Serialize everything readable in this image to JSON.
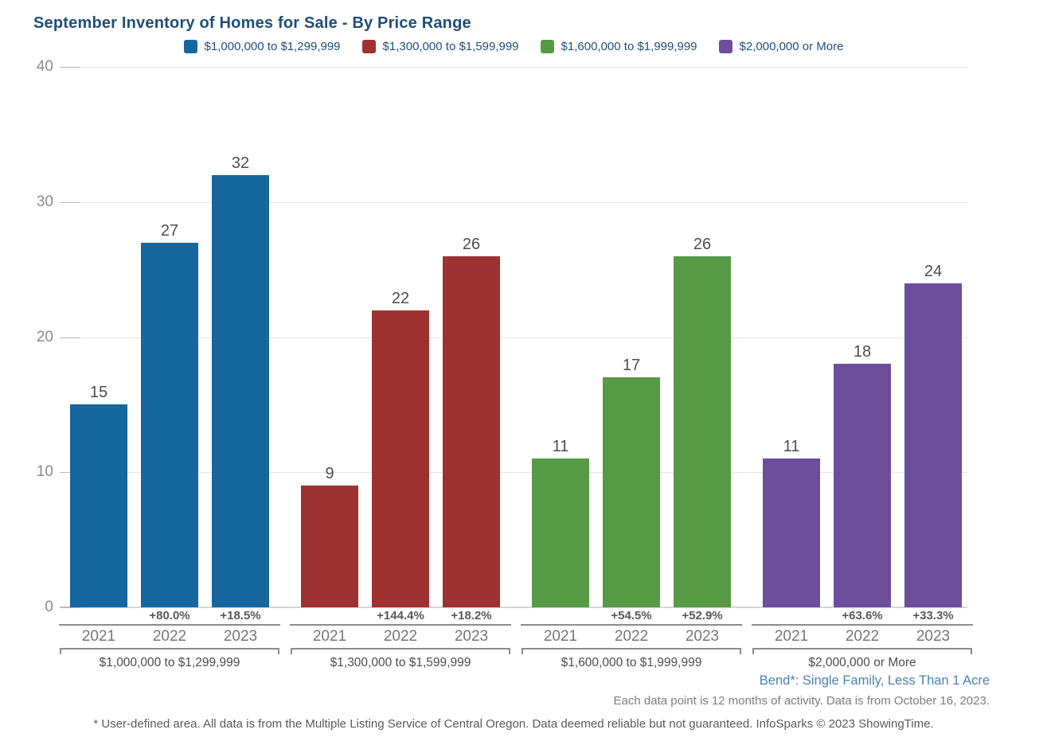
{
  "title": "September Inventory of Homes for Sale - By Price Range",
  "chart_data": {
    "type": "bar",
    "title": "September Inventory of Homes for Sale - By Price Range",
    "categories": [
      "2021",
      "2022",
      "2023"
    ],
    "groups": [
      {
        "label": "$1,000,000 to $1,299,999",
        "color": "#15679E",
        "values": [
          15,
          27,
          32
        ],
        "pct_change": [
          "",
          "+80.0%",
          "+18.5%"
        ]
      },
      {
        "label": "$1,300,000 to $1,599,999",
        "color": "#9E3132",
        "values": [
          9,
          22,
          26
        ],
        "pct_change": [
          "",
          "+144.4%",
          "+18.2%"
        ]
      },
      {
        "label": "$1,600,000 to $1,999,999",
        "color": "#579A46",
        "values": [
          11,
          17,
          26
        ],
        "pct_change": [
          "",
          "+54.5%",
          "+52.9%"
        ]
      },
      {
        "label": "$2,000,000 or More",
        "color": "#6C4E9D",
        "values": [
          11,
          18,
          24
        ],
        "pct_change": [
          "",
          "+63.6%",
          "+33.3%"
        ]
      }
    ],
    "ylim": [
      0,
      40
    ],
    "yticks": [
      0,
      10,
      20,
      30,
      40
    ],
    "grid": true,
    "legend_position": "top",
    "legend": [
      {
        "label": "$1,000,000 to $1,299,999",
        "color": "#15679E"
      },
      {
        "label": "$1,300,000 to $1,599,999",
        "color": "#9E3132"
      },
      {
        "label": "$1,600,000 to $1,999,999",
        "color": "#579A46"
      },
      {
        "label": "$2,000,000 or More",
        "color": "#6C4E9D"
      }
    ]
  },
  "footer": {
    "area_note": "Bend*: Single Family, Less Than 1 Acre",
    "data_note": "Each data point is 12 months of activity. Data is from October 16, 2023.",
    "disclaimer": "* User-defined area. All data is from the Multiple Listing Service of Central Oregon. Data deemed reliable but not guaranteed. InfoSparks © 2023 ShowingTime."
  }
}
